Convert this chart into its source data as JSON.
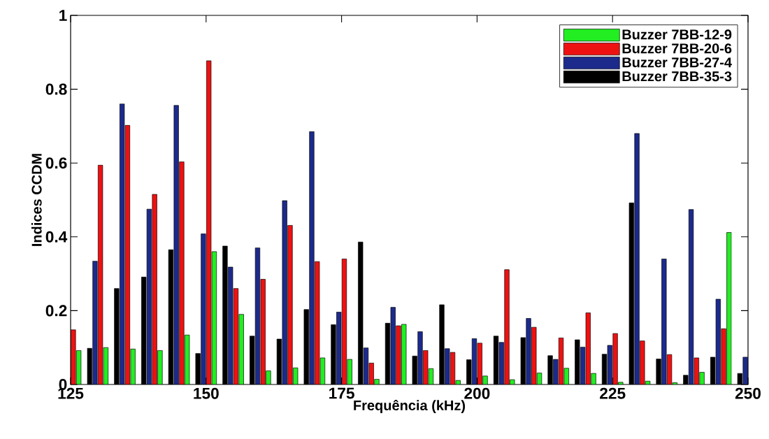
{
  "chart_data": {
    "type": "bar",
    "xlabel": "Frequência (kHz)",
    "ylabel": "Indices CCDM",
    "x": [
      125,
      130,
      135,
      140,
      145,
      150,
      155,
      160,
      165,
      170,
      175,
      180,
      185,
      190,
      195,
      200,
      205,
      210,
      215,
      220,
      225,
      230,
      235,
      240,
      245,
      250
    ],
    "series": [
      {
        "name": "Buzzer 7BB-12-9",
        "color": "#22ee22",
        "values": [
          0.092,
          0.1,
          0.096,
          0.092,
          0.134,
          0.36,
          0.19,
          0.037,
          0.045,
          0.072,
          0.068,
          0.014,
          0.163,
          0.043,
          0.011,
          0.023,
          0.013,
          0.031,
          0.044,
          0.03,
          0.006,
          0.009,
          0.005,
          0.033,
          0.412,
          null
        ]
      },
      {
        "name": "Buzzer 7BB-20-6",
        "color": "#ee1111",
        "values": [
          0.148,
          0.594,
          0.702,
          0.515,
          0.603,
          0.877,
          0.26,
          0.285,
          0.431,
          0.333,
          0.34,
          0.058,
          0.159,
          0.092,
          0.087,
          0.112,
          0.311,
          0.155,
          0.126,
          0.194,
          0.138,
          0.118,
          0.081,
          0.072,
          0.151,
          null
        ]
      },
      {
        "name": "Buzzer 7BB-27-4",
        "color": "#1c2a8c",
        "values": [
          null,
          0.334,
          0.76,
          0.475,
          0.756,
          0.408,
          0.318,
          0.37,
          0.498,
          0.685,
          0.196,
          0.099,
          0.209,
          0.143,
          0.097,
          0.124,
          0.114,
          0.179,
          0.068,
          0.101,
          0.106,
          0.68,
          0.34,
          0.474,
          0.231,
          0.074
        ]
      },
      {
        "name": "Buzzer 7BB-35-3",
        "color": "#000000",
        "values": [
          null,
          0.098,
          0.26,
          0.291,
          0.365,
          0.084,
          0.375,
          0.131,
          0.123,
          0.203,
          0.162,
          0.386,
          0.166,
          0.077,
          0.216,
          0.067,
          0.131,
          0.127,
          0.078,
          0.121,
          0.082,
          0.492,
          0.069,
          0.025,
          0.074,
          0.03
        ]
      }
    ],
    "xlim": [
      125,
      250
    ],
    "xticks": [
      125,
      150,
      175,
      200,
      225,
      250
    ],
    "ylim": [
      0,
      1
    ],
    "yticks": [
      0,
      0.2,
      0.4,
      0.6,
      0.8,
      1
    ],
    "legend": "top right"
  }
}
